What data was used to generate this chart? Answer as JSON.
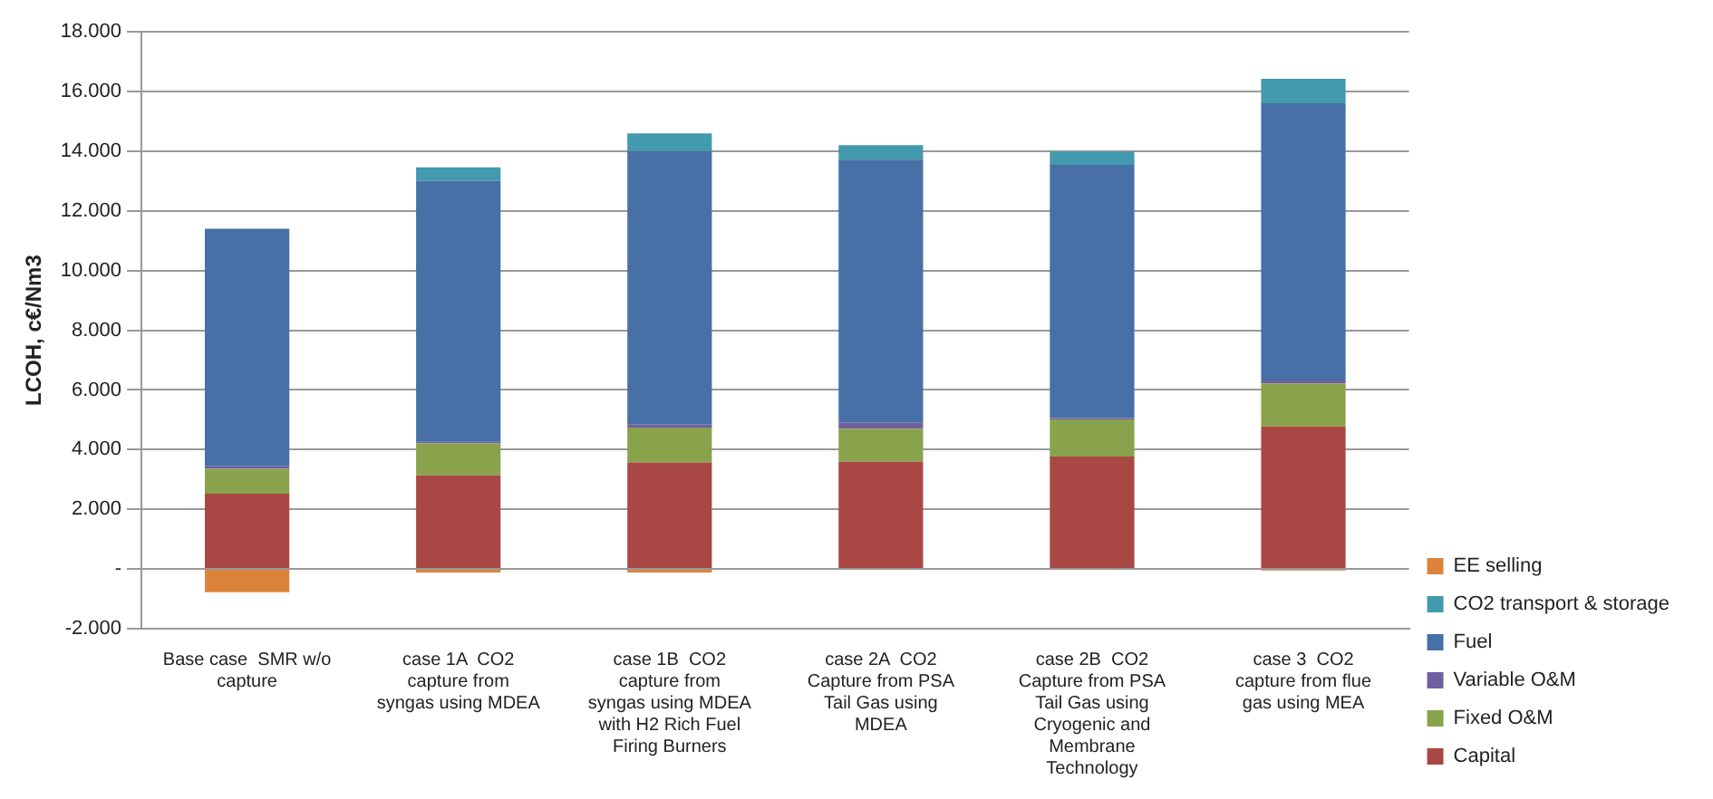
{
  "chart_data": {
    "type": "bar",
    "ylabel": "LCOH, c€/Nm3",
    "stacked": true,
    "grid": "y",
    "legend": "right",
    "categories": [
      "Base case  SMR w/o capture",
      "case 1A  CO2 capture from syngas using MDEA",
      "case 1B  CO2 capture from syngas using MDEA with H2 Rich Fuel Firing Burners",
      "case 2A  CO2 Capture from PSA Tail Gas using MDEA",
      "case 2B  CO2 Capture from PSA Tail Gas using Cryogenic and Membrane Technology",
      "case 3  CO2 capture from flue gas using MEA"
    ],
    "ylim": [
      -2,
      18
    ],
    "yticks": [
      {
        "value": -2,
        "label": "-2.000"
      },
      {
        "value": 0,
        "label": "-"
      },
      {
        "value": 2,
        "label": "2.000"
      },
      {
        "value": 4,
        "label": "4.000"
      },
      {
        "value": 6,
        "label": "6.000"
      },
      {
        "value": 8,
        "label": "8.000"
      },
      {
        "value": 10,
        "label": "10.000"
      },
      {
        "value": 12,
        "label": "12.000"
      },
      {
        "value": 14,
        "label": "14.000"
      },
      {
        "value": 16,
        "label": "16.000"
      },
      {
        "value": 18,
        "label": "18.000"
      }
    ],
    "series": [
      {
        "name": "Capital",
        "color": "#a94744",
        "values": [
          2.52,
          3.14,
          3.57,
          3.59,
          3.77,
          4.78
        ]
      },
      {
        "name": "Fixed O&M",
        "color": "#89a34c",
        "values": [
          0.84,
          1.07,
          1.17,
          1.11,
          1.24,
          1.44
        ]
      },
      {
        "name": "Variable O&M",
        "color": "#7060a0",
        "values": [
          0.08,
          0.05,
          0.1,
          0.2,
          0.05,
          0.1
        ]
      },
      {
        "name": "Fuel",
        "color": "#4770a6",
        "values": [
          7.96,
          8.75,
          9.17,
          8.82,
          8.48,
          9.29
        ]
      },
      {
        "name": "CO2 transport & storage",
        "color": "#4399ad",
        "values": [
          0,
          0.45,
          0.59,
          0.48,
          0.45,
          0.82
        ]
      },
      {
        "name": "EE selling",
        "color": "#dc843c",
        "values": [
          -0.78,
          -0.12,
          -0.12,
          0,
          -0.03,
          -0.05
        ]
      }
    ]
  }
}
